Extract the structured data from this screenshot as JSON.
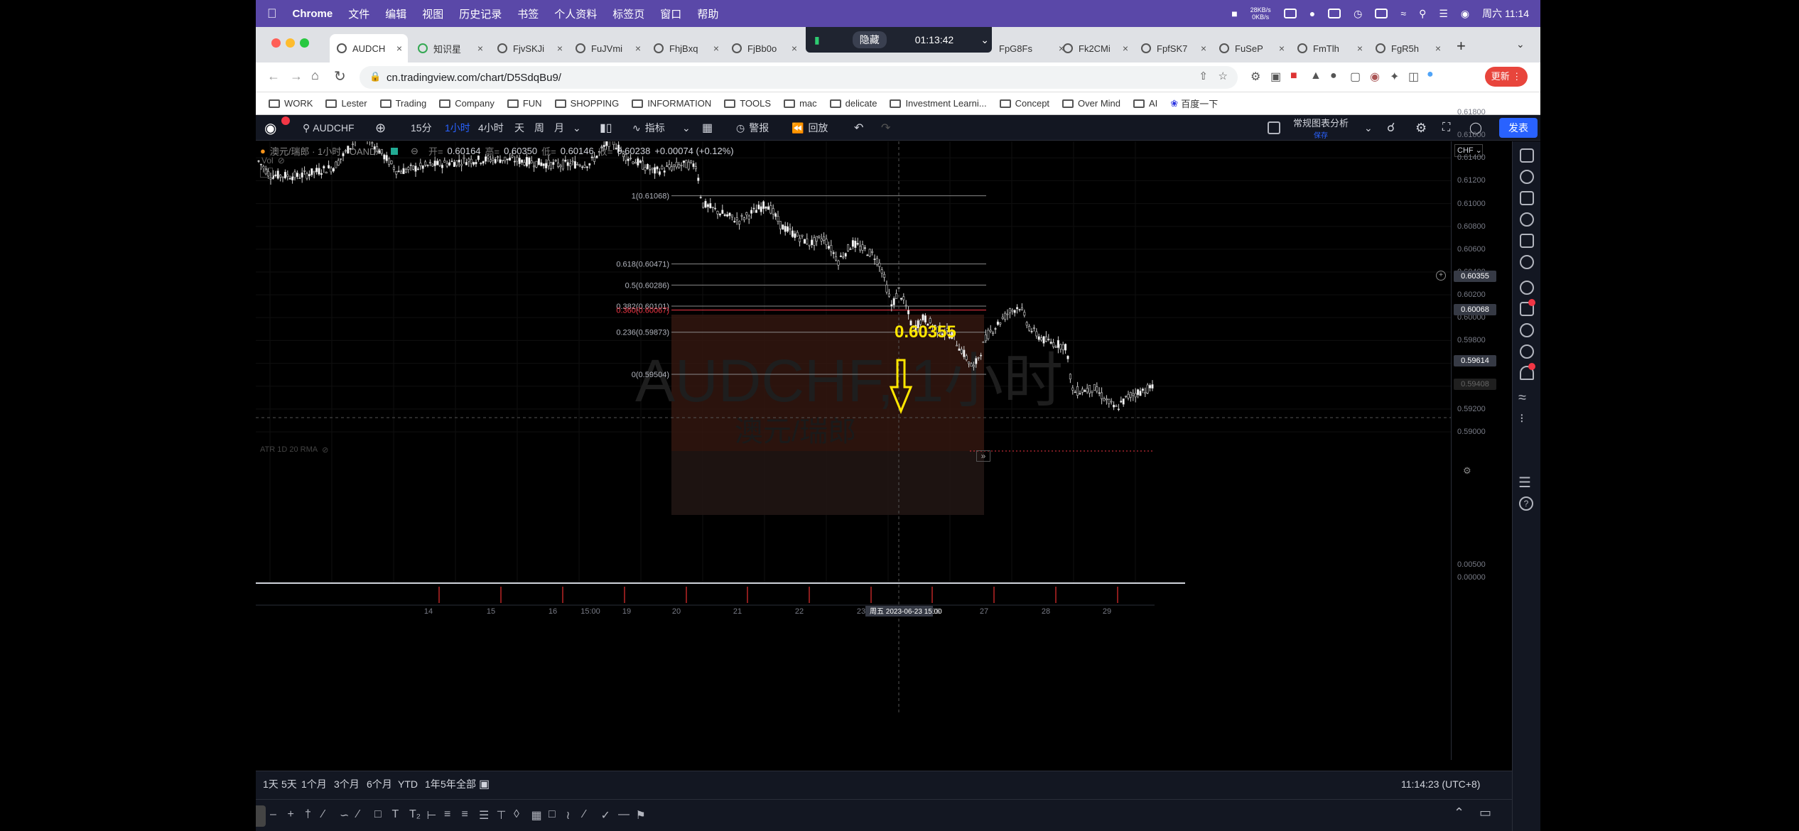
{
  "menubar": {
    "app": "Chrome",
    "items": [
      "文件",
      "编辑",
      "视图",
      "历史记录",
      "书签",
      "个人资料",
      "标签页",
      "窗口",
      "帮助"
    ],
    "net_up": "28KB/s",
    "net_down": "0KB/s",
    "clock": "周六 11:14"
  },
  "tabs": [
    "AUDCH",
    "知识星",
    "FjvSKJi",
    "FuJVmi",
    "FhjBxq",
    "FjBb0o",
    "FpG8Fs",
    "Fk2CMi",
    "FpfSK7",
    "FuSeP",
    "FmTlh",
    "FgR5h"
  ],
  "recorder": {
    "hide_label": "隐藏",
    "time": "01:13:42"
  },
  "address": {
    "url": "cn.tradingview.com/chart/D5SdqBu9/",
    "update_label": "更新"
  },
  "bookmarks": [
    "WORK",
    "Lester",
    "Trading",
    "Company",
    "FUN",
    "SHOPPING",
    "INFORMATION",
    "TOOLS",
    "mac",
    "delicate",
    "Investment Learni...",
    "Concept",
    "Over Mind",
    "AI",
    "百度一下"
  ],
  "toolbar": {
    "symbol": "AUDCHF",
    "intervals": [
      "15分",
      "1小时",
      "4小时",
      "天",
      "周",
      "月"
    ],
    "active_interval": "1小时",
    "indicators": "指标",
    "alert": "警报",
    "replay": "回放",
    "layout_name": "常规图表分析",
    "saved": "保存",
    "publish": "发表"
  },
  "legend": {
    "title": "澳元/瑞郎 · 1小时 · OANDA",
    "open_label": "开=",
    "open": "0.60164",
    "high_label": "高=",
    "high": "0.60350",
    "low_label": "低=",
    "low": "0.60146",
    "close_label": "收=",
    "close": "0.60238",
    "change": "+0.00074 (+0.12%)",
    "vol": "Vol"
  },
  "watermark": {
    "symbol": "AUDCHF, 1小时",
    "name": "澳元/瑞郎"
  },
  "fib": [
    {
      "label": "1(0.61068)",
      "price": 0.61068
    },
    {
      "label": "0.618(0.60471)",
      "price": 0.60471
    },
    {
      "label": "0.5(0.60286)",
      "price": 0.60286
    },
    {
      "label": "0.382(0.60101)",
      "price": 0.60101
    },
    {
      "label": "0.360(0.60067)",
      "price": 0.60067
    },
    {
      "label": "0.236(0.59873)",
      "price": 0.59873
    },
    {
      "label": "0(0.59504)",
      "price": 0.59504
    }
  ],
  "annotation": {
    "text": "0.60355",
    "color": "#ffe600"
  },
  "price_axis": {
    "currency": "CHF",
    "ticks": [
      "0.61800",
      "0.61600",
      "0.61400",
      "0.61200",
      "0.61000",
      "0.60800",
      "0.60600",
      "0.60400",
      "0.60200",
      "0.60000",
      "0.59800",
      "0.59600",
      "0.59400",
      "0.59200",
      "0.59000"
    ],
    "crosshair_price": "0.60355",
    "line_price": "0.60068",
    "current_price": "0.59614",
    "last_price": "0.59408"
  },
  "indicator_pane": {
    "label": "ATR 1D 20 RMA",
    "ticks": [
      "0.00500",
      "0.00000"
    ]
  },
  "time_axis": {
    "labels": [
      "14",
      "15",
      "16",
      "15:00",
      "19",
      "20",
      "21",
      "22",
      "23",
      "26",
      "27",
      "28",
      "29"
    ],
    "crosshair": "周五 2023-06-23   15:00"
  },
  "bottom": {
    "ranges": [
      "1天",
      "5天",
      "1个月",
      "3个月",
      "6个月",
      "YTD",
      "1年",
      "5年",
      "全部"
    ],
    "clock": "11:14:23 (UTC+8)"
  },
  "colors": {
    "accent": "#2962ff",
    "fib_red": "#f23645",
    "fib_zone": "#3a1a12",
    "menubar": "#5a48a8"
  }
}
